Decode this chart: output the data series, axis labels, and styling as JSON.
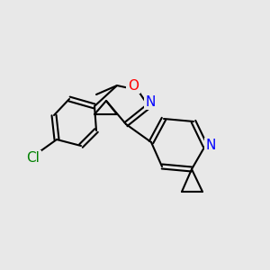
{
  "bg_color": "#e8e8e8",
  "bond_color": "#000000",
  "bond_lw": 1.5,
  "atom_colors": {
    "N": "#0000ff",
    "O": "#ff0000",
    "Cl": "#008000"
  },
  "font_size": 9
}
